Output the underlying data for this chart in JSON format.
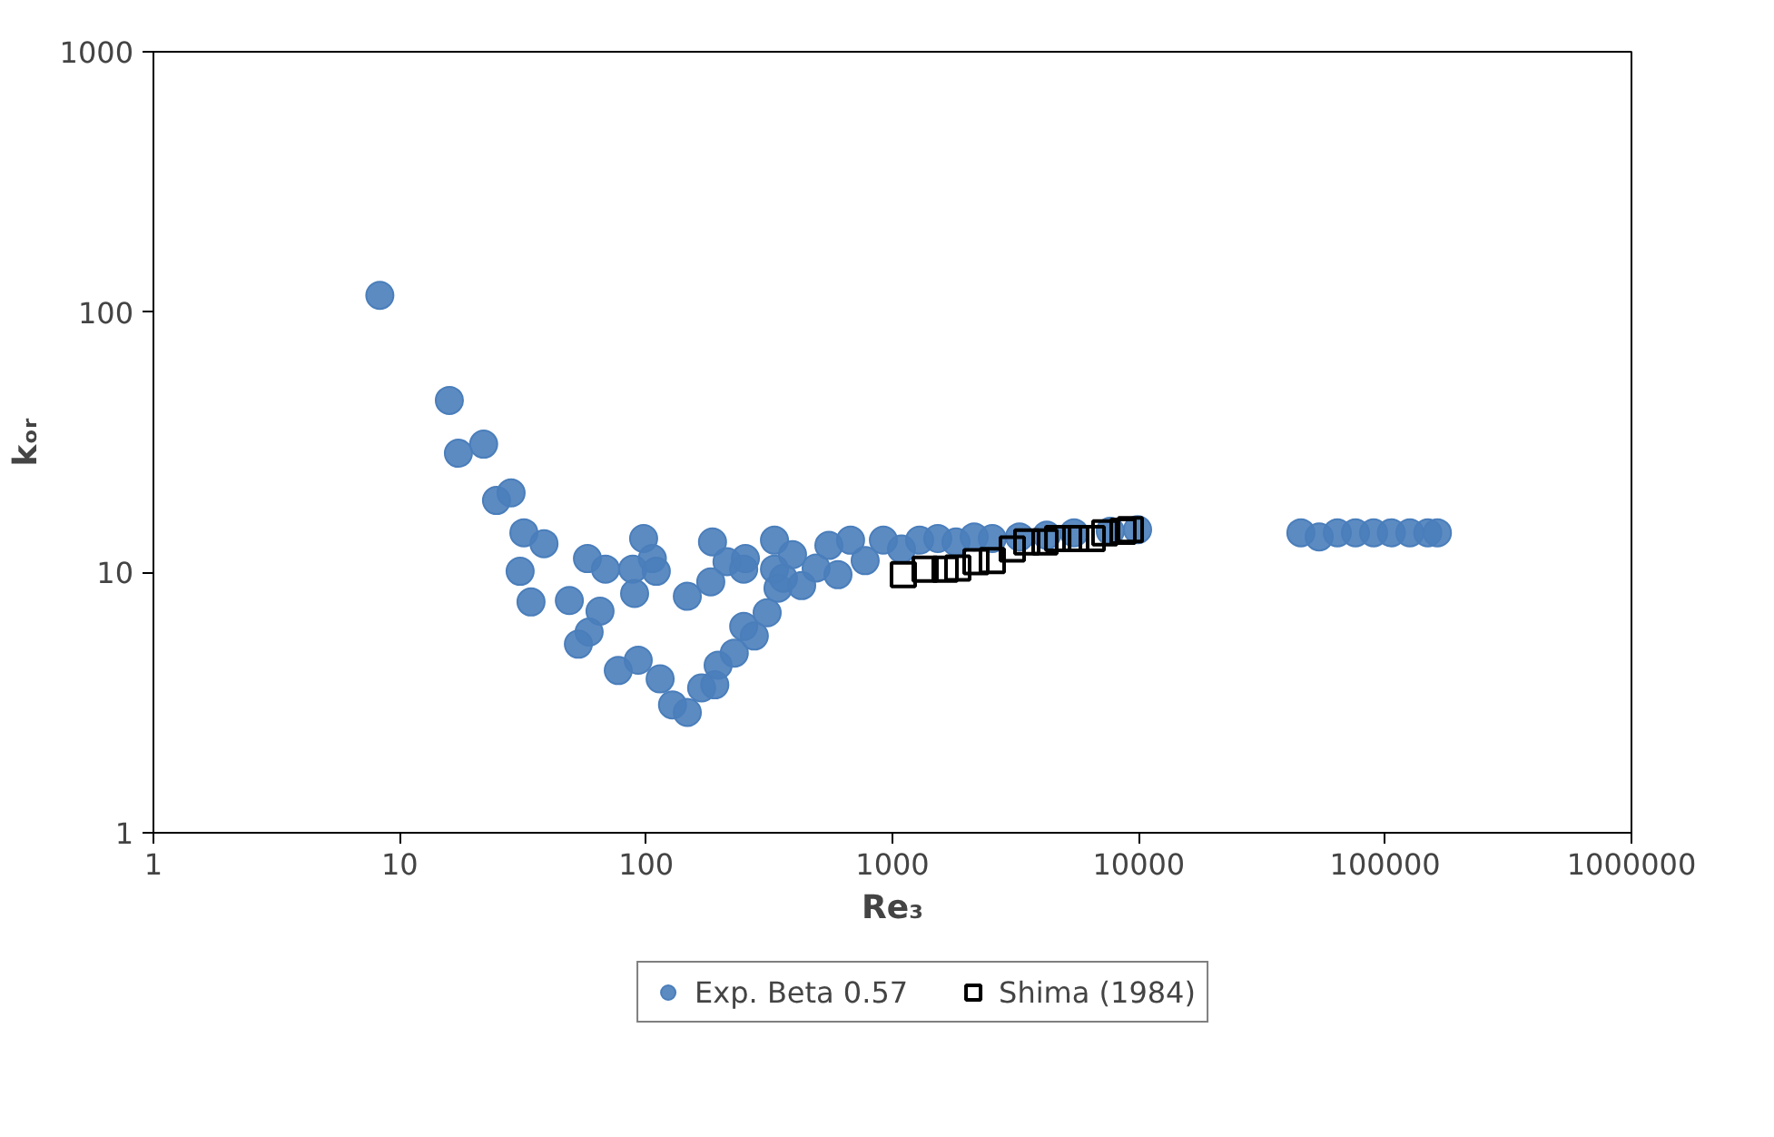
{
  "chart_data": {
    "type": "scatter",
    "xlabel": "Re₃",
    "ylabel": "kₒᵣ",
    "log": "xy",
    "xlim": [
      1,
      1000000
    ],
    "ylim": [
      1,
      1000
    ],
    "xticks": [
      1,
      10,
      100,
      1000,
      10000,
      100000,
      1000000
    ],
    "yticks": [
      1,
      10,
      100,
      1000
    ],
    "grid": false,
    "legend": "bottom",
    "series": [
      {
        "name": "Exp. Beta 0.57",
        "color": "#4a7ebb",
        "marker": "circle",
        "x": [
          8.3,
          15.9,
          17.3,
          21.9,
          24.7,
          28.3,
          31.9,
          38.5,
          30.8,
          34.1,
          57.8,
          68.4,
          48.8,
          65,
          58.7,
          53.1,
          97.7,
          106,
          88.3,
          110,
          89.8,
          77.1,
          92.9,
          114,
          128,
          147,
          147,
          186,
          183,
          213,
          253,
          249,
          168,
          190,
          196,
          228,
          249,
          275,
          310,
          332,
          332,
          343,
          361,
          393,
          428,
          490,
          552,
          601,
          676,
          775,
          919,
          1088,
          1289,
          1528,
          1811,
          2147,
          2543,
          3280,
          4230,
          5460,
          7660,
          9890,
          45500,
          54000,
          64000,
          75800,
          89800,
          106000,
          126000,
          149000,
          163000
        ],
        "values": [
          116,
          45.8,
          28.7,
          31.1,
          18.9,
          20.2,
          14.2,
          12.9,
          10.1,
          7.7,
          11.3,
          10.3,
          7.8,
          7.1,
          5.9,
          5.3,
          13.5,
          11.3,
          10.3,
          10.1,
          8.3,
          4.2,
          4.6,
          3.9,
          3.1,
          2.9,
          8.1,
          13.1,
          9.2,
          11,
          11.3,
          10.3,
          3.6,
          3.7,
          4.4,
          4.9,
          6.2,
          5.7,
          7,
          13.3,
          10.3,
          8.7,
          9.5,
          11.7,
          8.9,
          10.4,
          12.7,
          9.8,
          13.3,
          11.1,
          13.3,
          12.3,
          13.3,
          13.5,
          13.1,
          13.7,
          13.5,
          13.7,
          13.9,
          14.2,
          14.4,
          14.6,
          14.2,
          13.7,
          14.2,
          14.2,
          14.2,
          14.2,
          14.2,
          14.2,
          14.2
        ]
      },
      {
        "name": "Shima (1984)",
        "color": "#000000",
        "marker": "square",
        "x": [
          1107,
          1357,
          1636,
          1842,
          2183,
          2543,
          3065,
          3511,
          4160,
          4690,
          5550,
          6470,
          7280,
          8630,
          9240
        ],
        "values": [
          9.8,
          10.3,
          10.3,
          10.4,
          11,
          11.1,
          12.3,
          13.1,
          13.1,
          13.5,
          13.5,
          13.5,
          14.2,
          14.4,
          14.6
        ]
      }
    ]
  }
}
